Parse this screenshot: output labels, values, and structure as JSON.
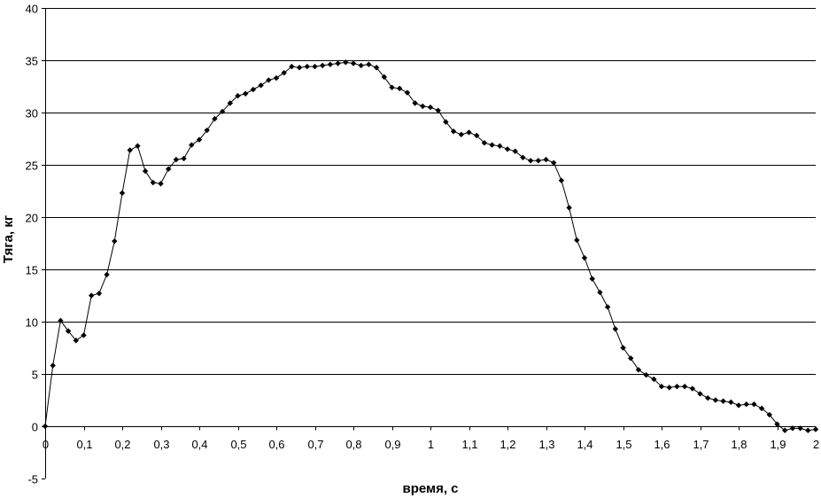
{
  "chart_data": {
    "type": "line",
    "title": "",
    "xlabel": "время, с",
    "ylabel": "Тяга, кг",
    "xlim": [
      0,
      2
    ],
    "ylim": [
      -5,
      40
    ],
    "grid": "horizontal",
    "legend": "none",
    "x_ticks": [
      "0",
      "0,1",
      "0,2",
      "0,3",
      "0,4",
      "0,5",
      "0,6",
      "0,7",
      "0,8",
      "0,9",
      "1",
      "1,1",
      "1,2",
      "1,3",
      "1,4",
      "1,5",
      "1,6",
      "1,7",
      "1,8",
      "1,9",
      "2"
    ],
    "y_ticks": [
      "-5",
      "0",
      "5",
      "10",
      "15",
      "20",
      "25",
      "30",
      "35",
      "40"
    ],
    "line_color": "#000000",
    "marker": "diamond",
    "series": [
      {
        "x": [
          0,
          0.02,
          0.04,
          0.06,
          0.08,
          0.1,
          0.12,
          0.14,
          0.16,
          0.18,
          0.2,
          0.22,
          0.24,
          0.26,
          0.28,
          0.3,
          0.32,
          0.34,
          0.36,
          0.38,
          0.4,
          0.42,
          0.44,
          0.46,
          0.48,
          0.5,
          0.52,
          0.54,
          0.56,
          0.58,
          0.6,
          0.62,
          0.64,
          0.66,
          0.68,
          0.7,
          0.72,
          0.74,
          0.76,
          0.78,
          0.8,
          0.82,
          0.84,
          0.86,
          0.88,
          0.9,
          0.92,
          0.94,
          0.96,
          0.98,
          1.0,
          1.02,
          1.04,
          1.06,
          1.08,
          1.1,
          1.12,
          1.14,
          1.16,
          1.18,
          1.2,
          1.22,
          1.24,
          1.26,
          1.28,
          1.3,
          1.32,
          1.34,
          1.36,
          1.38,
          1.4,
          1.42,
          1.44,
          1.46,
          1.48,
          1.5,
          1.52,
          1.54,
          1.56,
          1.58,
          1.6,
          1.62,
          1.64,
          1.66,
          1.68,
          1.7,
          1.72,
          1.74,
          1.76,
          1.78,
          1.8,
          1.82,
          1.84,
          1.86,
          1.88,
          1.9,
          1.92,
          1.94,
          1.96,
          1.98,
          2.0
        ],
        "y": [
          0,
          5.8,
          10.1,
          9.1,
          8.2,
          8.7,
          12.5,
          12.7,
          14.5,
          17.7,
          22.3,
          26.4,
          26.8,
          24.4,
          23.3,
          23.2,
          24.6,
          25.5,
          25.6,
          26.9,
          27.4,
          28.3,
          29.4,
          30.1,
          30.9,
          31.6,
          31.8,
          32.2,
          32.6,
          33.1,
          33.3,
          33.8,
          34.4,
          34.3,
          34.4,
          34.4,
          34.5,
          34.6,
          34.7,
          34.8,
          34.7,
          34.5,
          34.6,
          34.3,
          33.4,
          32.4,
          32.3,
          31.9,
          30.9,
          30.6,
          30.5,
          30.2,
          29.1,
          28.2,
          27.9,
          28.1,
          27.8,
          27.1,
          26.9,
          26.8,
          26.5,
          26.3,
          25.7,
          25.4,
          25.4,
          25.5,
          25.2,
          23.5,
          20.9,
          17.8,
          16.1,
          14.1,
          12.8,
          11.4,
          9.3,
          7.5,
          6.5,
          5.4,
          4.9,
          4.5,
          3.8,
          3.7,
          3.8,
          3.8,
          3.6,
          3.1,
          2.7,
          2.5,
          2.4,
          2.3,
          2.0,
          2.1,
          2.1,
          1.7,
          1.1,
          0.2,
          -0.4,
          -0.2,
          -0.2,
          -0.4,
          -0.3
        ]
      }
    ]
  }
}
